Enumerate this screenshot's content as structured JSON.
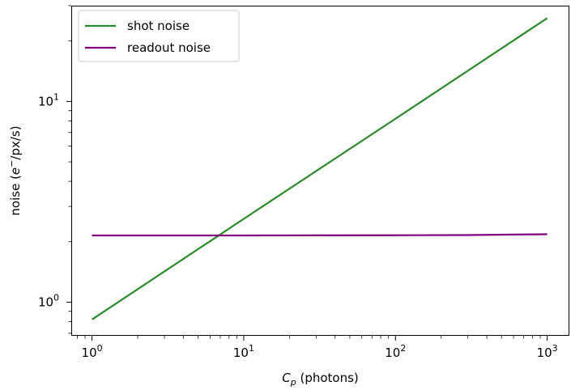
{
  "chart_data": {
    "type": "line",
    "xscale": "log",
    "yscale": "log",
    "xlim": [
      0.73,
      1400
    ],
    "ylim": [
      0.68,
      30
    ],
    "xlabel": {
      "main": "C",
      "sub": "p",
      "rest": " (photons)"
    },
    "ylabel": {
      "pre": "noise (",
      "base": "e",
      "sup": "−",
      "post": "/px/s)"
    },
    "xticks": [
      {
        "value": 1,
        "base": "10",
        "exp": "0"
      },
      {
        "value": 10,
        "base": "10",
        "exp": "1"
      },
      {
        "value": 100,
        "base": "10",
        "exp": "2"
      },
      {
        "value": 1000,
        "base": "10",
        "exp": "3"
      }
    ],
    "yticks": [
      {
        "value": 1,
        "base": "10",
        "exp": "0"
      },
      {
        "value": 10,
        "base": "10",
        "exp": "1"
      }
    ],
    "grid": false,
    "legend_position": "top-left",
    "series": [
      {
        "name": "shot noise",
        "color": "#2a8a2a",
        "x": [
          1,
          10,
          100,
          1000
        ],
        "y": [
          0.82,
          2.6,
          8.2,
          26
        ]
      },
      {
        "name": "readout noise",
        "color": "#800080",
        "x": [
          1,
          10,
          100,
          300,
          1000
        ],
        "y": [
          2.15,
          2.15,
          2.155,
          2.16,
          2.18
        ]
      }
    ]
  }
}
